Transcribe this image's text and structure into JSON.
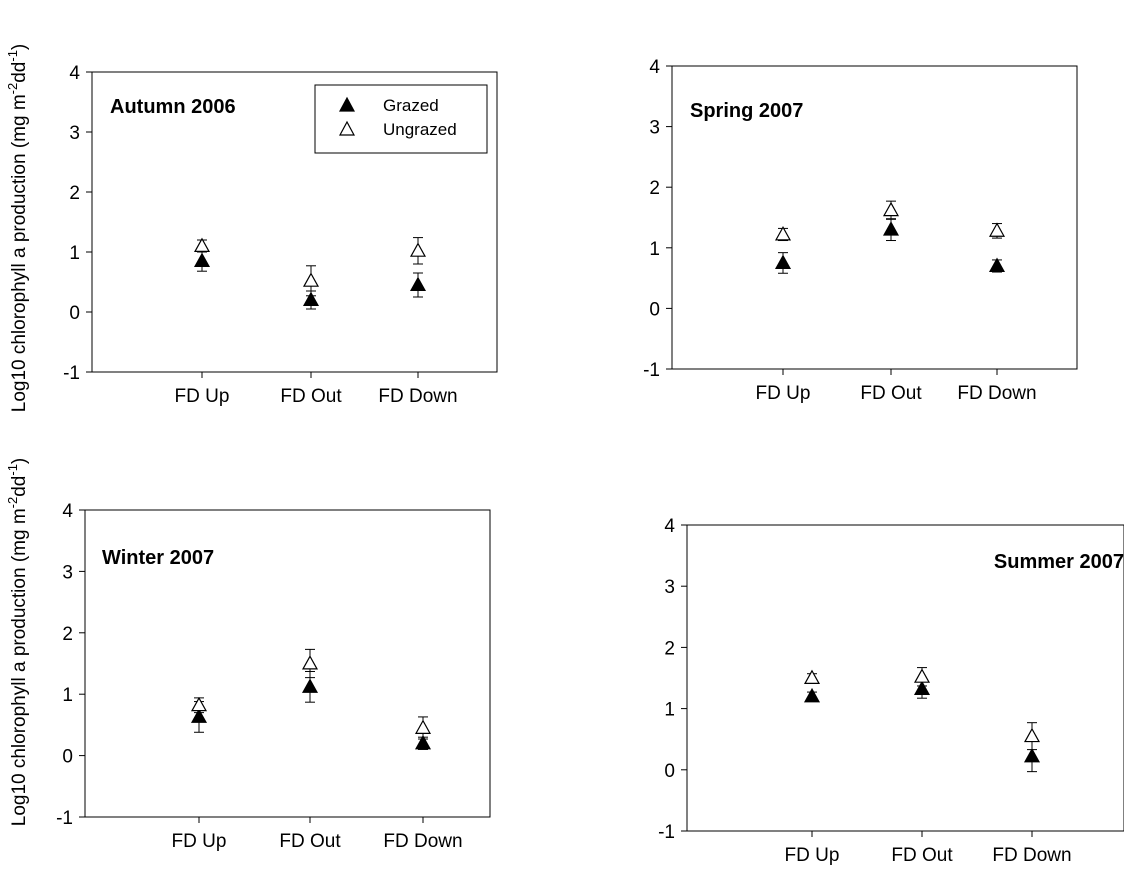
{
  "chart_data": [
    {
      "type": "scatter",
      "title": "Autumn 2006",
      "categories": [
        "FD Up",
        "FD Out",
        "FD Down"
      ],
      "ylim": [
        -1,
        4
      ],
      "yticks": [
        "-1",
        "0",
        "1",
        "2",
        "3",
        "4"
      ],
      "legend": {
        "position": "top-right",
        "entries": [
          "Grazed",
          "Ungrazed"
        ]
      },
      "series": [
        {
          "name": "Grazed",
          "marker": "filled-triangle",
          "values": [
            0.85,
            0.2,
            0.45
          ],
          "err_low": [
            0.17,
            0.15,
            0.2
          ],
          "err_high": [
            0.17,
            0.15,
            0.2
          ]
        },
        {
          "name": "Ungrazed",
          "marker": "open-triangle",
          "values": [
            1.1,
            0.52,
            1.02
          ],
          "err_low": [
            0.1,
            0.25,
            0.22
          ],
          "err_high": [
            0.1,
            0.25,
            0.22
          ]
        }
      ]
    },
    {
      "type": "scatter",
      "title": "Spring 2007",
      "categories": [
        "FD Up",
        "FD Out",
        "FD Down"
      ],
      "ylim": [
        -1,
        4
      ],
      "yticks": [
        "-1",
        "0",
        "1",
        "2",
        "3",
        "4"
      ],
      "series": [
        {
          "name": "Grazed",
          "marker": "filled-triangle",
          "values": [
            0.75,
            1.3,
            0.7
          ],
          "err_low": [
            0.17,
            0.18,
            0.1
          ],
          "err_high": [
            0.17,
            0.18,
            0.1
          ]
        },
        {
          "name": "Ungrazed",
          "marker": "open-triangle",
          "values": [
            1.22,
            1.62,
            1.28
          ],
          "err_low": [
            0.1,
            0.15,
            0.12
          ],
          "err_high": [
            0.1,
            0.15,
            0.12
          ]
        }
      ]
    },
    {
      "type": "scatter",
      "title": "Winter 2007",
      "categories": [
        "FD Up",
        "FD Out",
        "FD Down"
      ],
      "ylim": [
        -1,
        4
      ],
      "yticks": [
        "-1",
        "0",
        "1",
        "2",
        "3",
        "4"
      ],
      "series": [
        {
          "name": "Grazed",
          "marker": "filled-triangle",
          "values": [
            0.63,
            1.12,
            0.2
          ],
          "err_low": [
            0.25,
            0.25,
            0.1
          ],
          "err_high": [
            0.25,
            0.25,
            0.1
          ]
        },
        {
          "name": "Ungrazed",
          "marker": "open-triangle",
          "values": [
            0.82,
            1.5,
            0.45
          ],
          "err_low": [
            0.12,
            0.23,
            0.18
          ],
          "err_high": [
            0.12,
            0.23,
            0.18
          ]
        }
      ]
    },
    {
      "type": "scatter",
      "title": "Summer 2007",
      "categories": [
        "FD Up",
        "FD Out",
        "FD Down"
      ],
      "ylim": [
        -1,
        4
      ],
      "yticks": [
        "-1",
        "0",
        "1",
        "2",
        "3",
        "4"
      ],
      "series": [
        {
          "name": "Grazed",
          "marker": "filled-triangle",
          "values": [
            1.2,
            1.32,
            0.22
          ],
          "err_low": [
            0.07,
            0.15,
            0.25
          ],
          "err_high": [
            0.07,
            0.15,
            0.25
          ]
        },
        {
          "name": "Ungrazed",
          "marker": "open-triangle",
          "values": [
            1.5,
            1.52,
            0.55
          ],
          "err_low": [
            0.07,
            0.15,
            0.22
          ],
          "err_high": [
            0.07,
            0.15,
            0.22
          ]
        }
      ]
    }
  ],
  "y_axis_label_upper": {
    "main": "Log10 chlorophyll a production (mg m",
    "sup1": "-2",
    "mid": "dd",
    "sup2": "-1",
    "end": ")"
  },
  "y_axis_label_lower": {
    "main": "Log10 chlorophyll a production (mg m",
    "sup1": "-2",
    "mid": "dd",
    "sup2": "-1",
    "end": ")"
  }
}
